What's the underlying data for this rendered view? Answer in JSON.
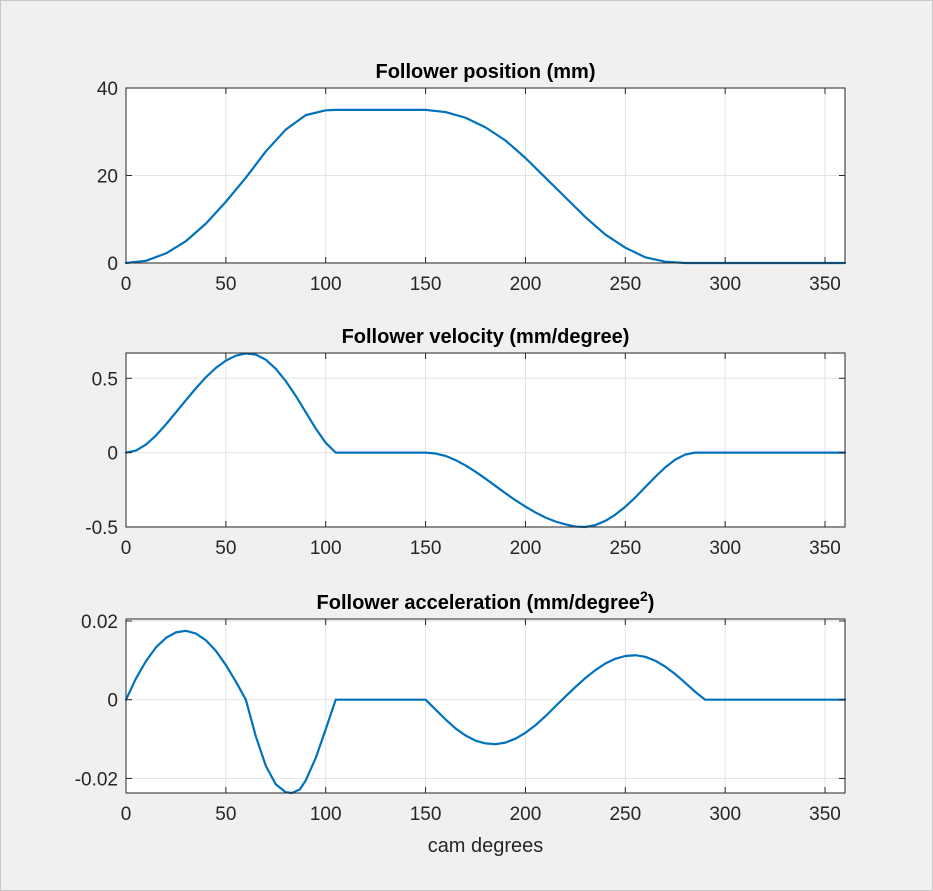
{
  "figure": {
    "background": "#f0f0f0",
    "line_color": "#0072bd"
  },
  "chart_data": [
    {
      "type": "line",
      "title": "Follower position (mm)",
      "xlabel": "",
      "ylabel": "",
      "xlim": [
        0,
        360
      ],
      "ylim": [
        0,
        40
      ],
      "xticks": [
        0,
        50,
        100,
        150,
        200,
        250,
        300,
        350
      ],
      "yticks": [
        0,
        20,
        40
      ],
      "grid": true,
      "series": [
        {
          "x": [
            0,
            10,
            20,
            30,
            40,
            50,
            60,
            70,
            80,
            90,
            100,
            105,
            125,
            150,
            160,
            170,
            180,
            190,
            200,
            210,
            220,
            230,
            240,
            250,
            260,
            270,
            280,
            290,
            300,
            320,
            340,
            360
          ],
          "y": [
            0,
            0.5,
            2.2,
            5.0,
            9.0,
            14.0,
            19.5,
            25.5,
            30.5,
            33.8,
            34.9,
            35,
            35,
            35,
            34.5,
            33.2,
            31.0,
            28.0,
            24.0,
            19.5,
            15.0,
            10.5,
            6.5,
            3.5,
            1.3,
            0.3,
            0.0,
            0,
            0,
            0,
            0,
            0
          ]
        }
      ]
    },
    {
      "type": "line",
      "title": "Follower velocity (mm/degree)",
      "xlabel": "",
      "ylabel": "",
      "xlim": [
        0,
        360
      ],
      "ylim": [
        -0.5,
        0.67
      ],
      "xticks": [
        0,
        50,
        100,
        150,
        200,
        250,
        300,
        350
      ],
      "yticks": [
        -0.5,
        0,
        0.5
      ],
      "ytick_labels": [
        "-0.5",
        "0",
        "0.5"
      ],
      "grid": true,
      "series": [
        {
          "x": [
            0,
            5,
            10,
            15,
            20,
            25,
            30,
            35,
            40,
            45,
            50,
            55,
            60,
            65,
            70,
            75,
            80,
            85,
            90,
            95,
            100,
            105,
            150,
            155,
            160,
            165,
            170,
            175,
            180,
            185,
            190,
            195,
            200,
            205,
            210,
            215,
            220,
            225,
            230,
            235,
            240,
            245,
            250,
            255,
            260,
            265,
            270,
            275,
            280,
            285,
            290,
            360
          ],
          "y": [
            0,
            0.014,
            0.054,
            0.115,
            0.19,
            0.271,
            0.353,
            0.433,
            0.507,
            0.57,
            0.619,
            0.652,
            0.667,
            0.659,
            0.625,
            0.564,
            0.481,
            0.382,
            0.272,
            0.162,
            0.066,
            0,
            0,
            -0.006,
            -0.022,
            -0.05,
            -0.086,
            -0.128,
            -0.175,
            -0.224,
            -0.273,
            -0.32,
            -0.363,
            -0.402,
            -0.436,
            -0.463,
            -0.482,
            -0.497,
            -0.5,
            -0.487,
            -0.459,
            -0.417,
            -0.364,
            -0.301,
            -0.232,
            -0.163,
            -0.099,
            -0.047,
            -0.013,
            0,
            0,
            0
          ]
        }
      ]
    },
    {
      "type": "line",
      "title": "Follower acceleration (mm/degree",
      "title_superscript": "2",
      "title_suffix": ")",
      "xlabel": "cam degrees",
      "ylabel": "",
      "xlim": [
        0,
        360
      ],
      "ylim": [
        -0.0237,
        0.0205
      ],
      "xticks": [
        0,
        50,
        100,
        150,
        200,
        250,
        300,
        350
      ],
      "yticks": [
        -0.02,
        0,
        0.02
      ],
      "ytick_labels": [
        "-0.02",
        "0",
        "0.02"
      ],
      "grid": true,
      "series": [
        {
          "x": [
            0,
            5,
            10,
            15,
            20,
            25,
            30,
            35,
            40,
            45,
            50,
            55,
            60,
            65,
            70,
            75,
            80,
            83,
            87,
            90,
            95,
            100,
            105,
            150,
            155,
            160,
            165,
            170,
            175,
            180,
            185,
            190,
            195,
            200,
            205,
            210,
            215,
            220,
            225,
            230,
            235,
            240,
            245,
            250,
            255,
            260,
            265,
            270,
            275,
            280,
            285,
            290,
            360
          ],
          "y": [
            0,
            0.0054,
            0.0098,
            0.0133,
            0.0157,
            0.0171,
            0.0175,
            0.0168,
            0.0151,
            0.0124,
            0.0088,
            0.0046,
            0,
            -0.0093,
            -0.0168,
            -0.0215,
            -0.0235,
            -0.0237,
            -0.0228,
            -0.0205,
            -0.0148,
            -0.0075,
            0,
            0,
            -0.0025,
            -0.005,
            -0.0073,
            -0.0091,
            -0.0104,
            -0.0111,
            -0.0113,
            -0.0109,
            -0.0099,
            -0.0084,
            -0.0065,
            -0.0042,
            -0.0017,
            0.0008,
            0.0032,
            0.0055,
            0.0075,
            0.0092,
            0.0104,
            0.0111,
            0.0113,
            0.0109,
            0.0099,
            0.0084,
            0.0065,
            0.0043,
            0.002,
            0,
            0
          ]
        }
      ]
    }
  ]
}
